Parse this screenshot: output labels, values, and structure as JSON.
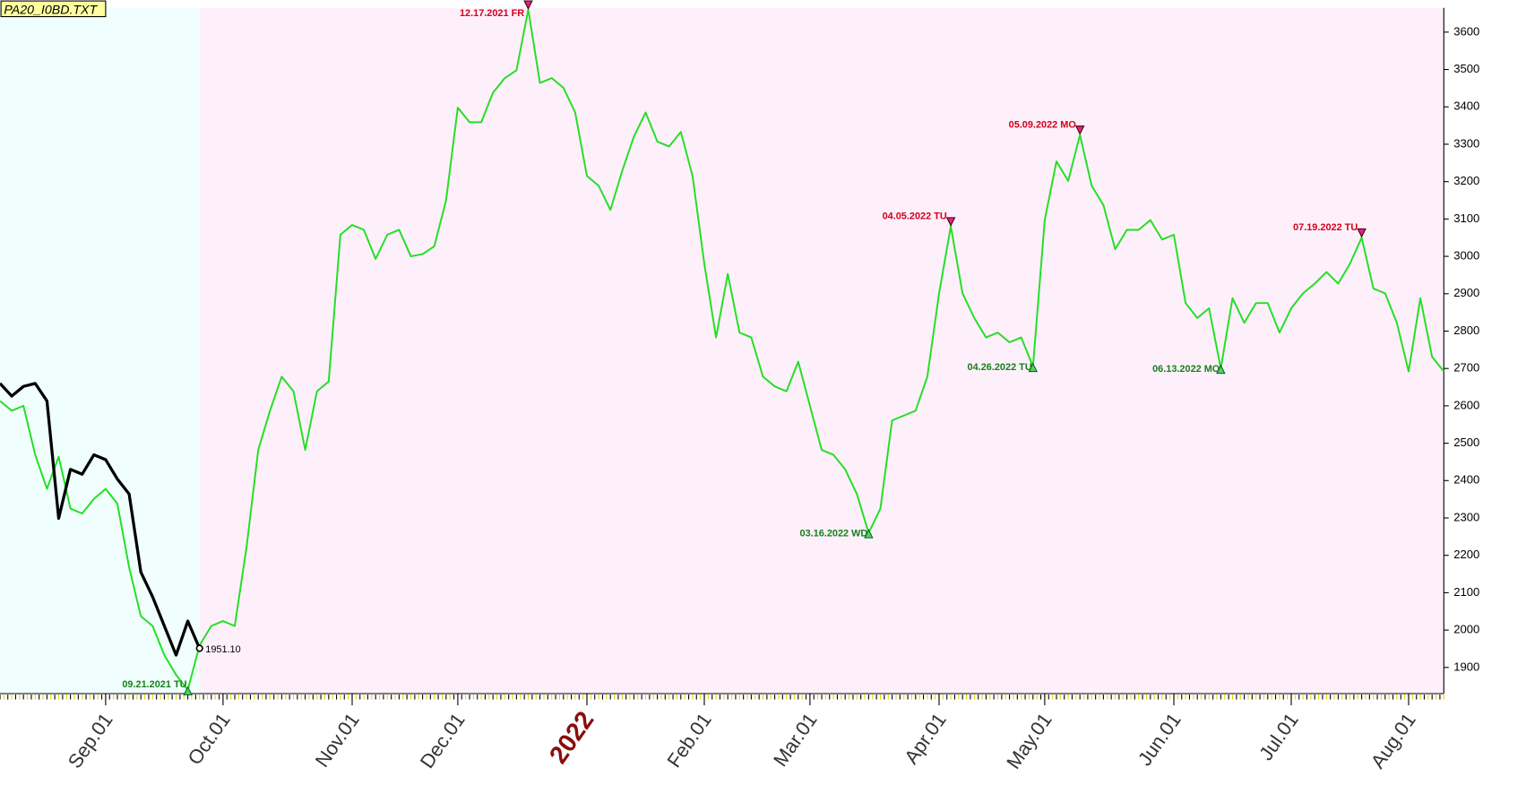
{
  "chart_data": {
    "type": "line",
    "title": "PA20_I0BD.TXT",
    "categories": [
      null,
      null,
      null,
      null,
      null,
      null,
      null,
      null,
      null,
      "Sep.01",
      null,
      null,
      null,
      null,
      null,
      null,
      null,
      null,
      null,
      "Oct.01",
      null,
      null,
      null,
      null,
      null,
      null,
      null,
      null,
      null,
      null,
      "Nov.01",
      null,
      null,
      null,
      null,
      null,
      null,
      null,
      null,
      "Dec.01",
      null,
      null,
      null,
      null,
      null,
      null,
      null,
      null,
      null,
      null,
      "2022",
      null,
      null,
      null,
      null,
      null,
      null,
      null,
      null,
      null,
      "Feb.01",
      null,
      null,
      null,
      null,
      null,
      null,
      null,
      null,
      "Mar.01",
      null,
      null,
      null,
      null,
      null,
      null,
      null,
      null,
      null,
      null,
      "Apr.01",
      null,
      null,
      null,
      null,
      null,
      null,
      null,
      null,
      "May.01",
      null,
      null,
      null,
      null,
      null,
      null,
      null,
      null,
      null,
      null,
      "Jun.01",
      null,
      null,
      null,
      null,
      null,
      null,
      null,
      null,
      null,
      "Jul.01",
      null,
      null,
      null,
      null,
      null,
      null,
      null,
      null,
      null,
      "Aug.01",
      null,
      null,
      null
    ],
    "series": [
      {
        "color": "#22e022",
        "values": [
          2613,
          2587,
          2600,
          2469,
          2378,
          2464,
          2325,
          2312,
          2351,
          2378,
          2338,
          2168,
          2037,
          2011,
          1933,
          1880,
          1840,
          1959,
          2011,
          2024,
          2011,
          2221,
          2482,
          2587,
          2678,
          2639,
          2482,
          2639,
          2665,
          3058,
          3084,
          3071,
          2993,
          3058,
          3071,
          3000,
          3006,
          3027,
          3150,
          3398,
          3359,
          3359,
          3438,
          3477,
          3498,
          3660,
          3464,
          3477,
          3451,
          3385,
          3215,
          3189,
          3124,
          3228,
          3320,
          3385,
          3307,
          3294,
          3333,
          3215,
          2980,
          2783,
          2953,
          2796,
          2783,
          2678,
          2652,
          2639,
          2718,
          2600,
          2482,
          2469,
          2430,
          2364,
          2260,
          2325,
          2561,
          2574,
          2587,
          2678,
          2901,
          3080,
          2901,
          2835,
          2783,
          2796,
          2770,
          2783,
          2705,
          3097,
          3254,
          3202,
          3325,
          3189,
          3137,
          3019,
          3071,
          3071,
          3097,
          3045,
          3058,
          2875,
          2835,
          2861,
          2700,
          2888,
          2822,
          2875,
          2875,
          2796,
          2861,
          2901,
          2927,
          2958,
          2927,
          2980,
          3050,
          2914,
          2901,
          2822,
          2692,
          2888,
          2731,
          2692
        ]
      },
      {
        "color": "#000000",
        "values": [
          2660,
          2626,
          2652,
          2660,
          2613,
          2299,
          2430,
          2417,
          2469,
          2456,
          2404,
          2364,
          2155,
          2089,
          2011,
          1933,
          2024,
          1951.1,
          null,
          null,
          null,
          null,
          null,
          null,
          null,
          null,
          null,
          null,
          null,
          null,
          null,
          null,
          null,
          null,
          null,
          null,
          null,
          null,
          null,
          null,
          null,
          null,
          null,
          null,
          null,
          null,
          null,
          null,
          null,
          null,
          null,
          null,
          null,
          null,
          null,
          null,
          null,
          null,
          null,
          null,
          null,
          null,
          null,
          null,
          null,
          null,
          null,
          null,
          null,
          null,
          null,
          null,
          null,
          null,
          null,
          null,
          null,
          null,
          null,
          null,
          null,
          null,
          null,
          null,
          null,
          null,
          null,
          null,
          null,
          null,
          null,
          null,
          null,
          null,
          null,
          null,
          null,
          null,
          null,
          null,
          null,
          null,
          null,
          null,
          null,
          null,
          null,
          null,
          null,
          null,
          null,
          null,
          null,
          null,
          null,
          null,
          null,
          null,
          null,
          null,
          null,
          null,
          null,
          null
        ],
        "value_labels": [
          null,
          null,
          null,
          null,
          null,
          null,
          null,
          null,
          null,
          null,
          null,
          null,
          null,
          null,
          null,
          null,
          null,
          "1951.10",
          null,
          null,
          null,
          null,
          null,
          null,
          null,
          null,
          null,
          null,
          null,
          null,
          null,
          null,
          null,
          null,
          null,
          null,
          null,
          null,
          null,
          null,
          null,
          null,
          null,
          null,
          null,
          null,
          null,
          null,
          null,
          null,
          null,
          null,
          null,
          null,
          null,
          null,
          null,
          null,
          null,
          null,
          null,
          null,
          null,
          null,
          null,
          null,
          null,
          null,
          null,
          null,
          null,
          null,
          null,
          null,
          null,
          null,
          null,
          null,
          null,
          null,
          null,
          null,
          null,
          null,
          null,
          null,
          null,
          null,
          null,
          null,
          null,
          null,
          null,
          null,
          null,
          null,
          null,
          null,
          null,
          null,
          null,
          null,
          null,
          null,
          null,
          null,
          null,
          null,
          null,
          null,
          null,
          null,
          null,
          null,
          null,
          null,
          null,
          null,
          null,
          null,
          null,
          null,
          null,
          null
        ]
      }
    ],
    "annotations": [
      {
        "text": "09.21.2021 TU",
        "index": 16,
        "kind": "low"
      },
      {
        "text": "12.17.2021 FR",
        "index": 45,
        "kind": "high"
      },
      {
        "text": "03.16.2022 WD",
        "index": 74,
        "kind": "low"
      },
      {
        "text": "04.05.2022 TU",
        "index": 81,
        "kind": "high"
      },
      {
        "text": "04.26.2022 TU",
        "index": 88,
        "kind": "low"
      },
      {
        "text": "05.09.2022 MO",
        "index": 92,
        "kind": "high"
      },
      {
        "text": "06.13.2022 MO",
        "index": 104,
        "kind": "low"
      },
      {
        "text": "07.19.2022 TU",
        "index": 116,
        "kind": "high"
      }
    ],
    "ylim": [
      1830,
      3665
    ],
    "yticks": [
      1900,
      2000,
      2100,
      2200,
      2300,
      2400,
      2500,
      2600,
      2700,
      2800,
      2900,
      3000,
      3100,
      3200,
      3300,
      3400,
      3500,
      3600
    ]
  }
}
